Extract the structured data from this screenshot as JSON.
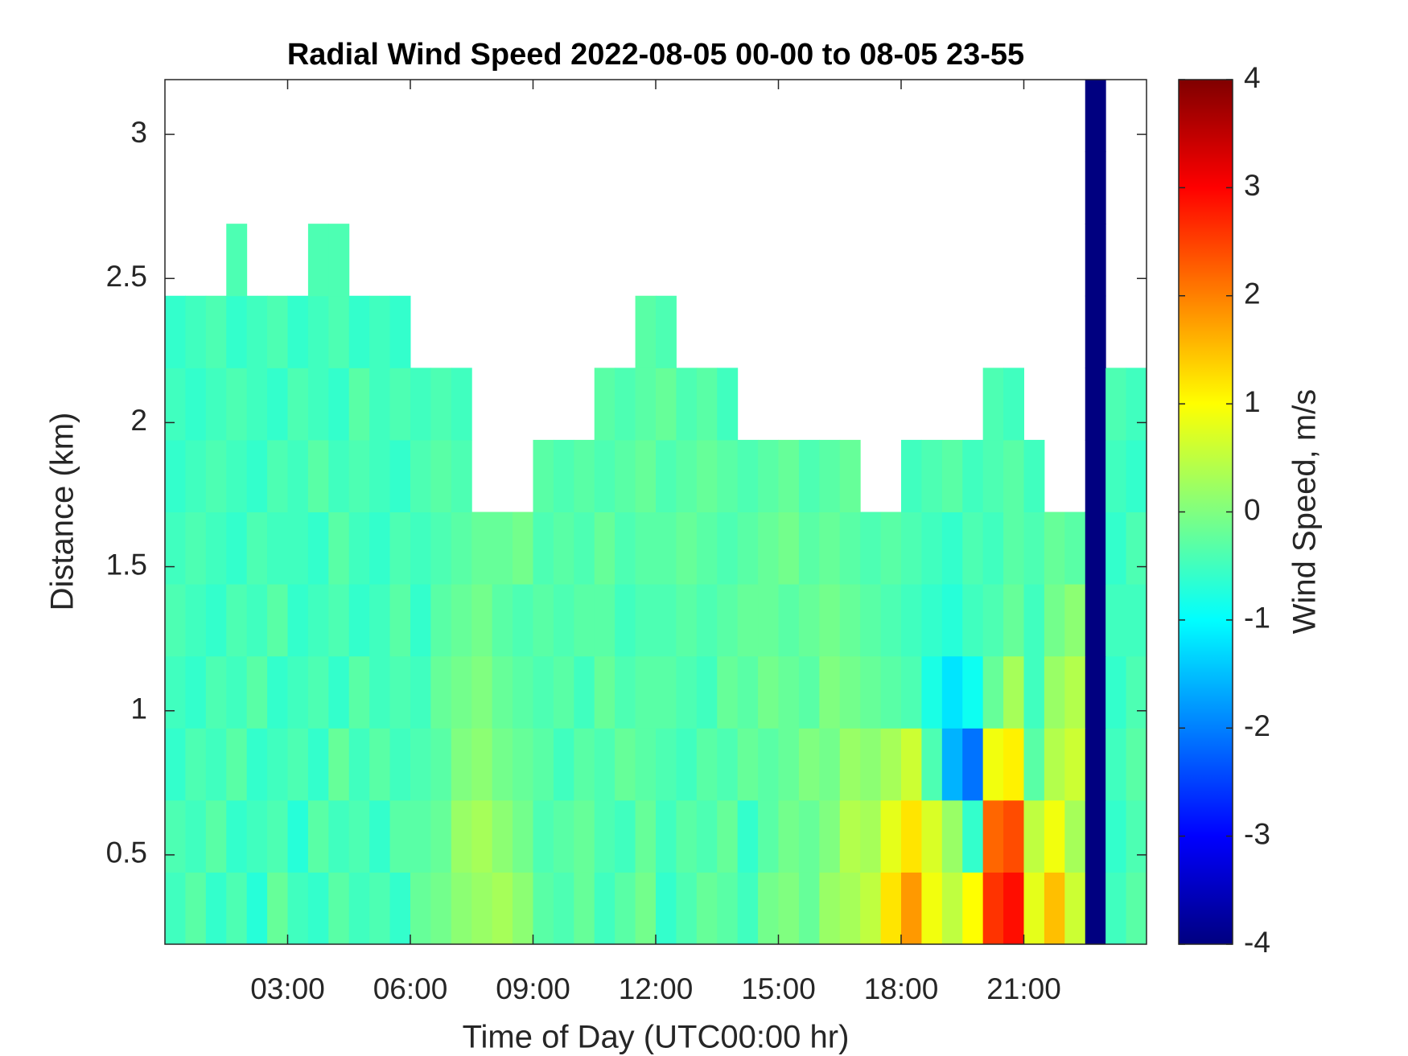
{
  "chart_data": {
    "type": "heatmap",
    "title": "Radial Wind Speed 2022-08-05 00-00 to 08-05 23-55",
    "xlabel": "Time of Day (UTC00:00 hr)",
    "ylabel": "Distance (km)",
    "x": [
      0.25,
      0.75,
      1.25,
      1.75,
      2.25,
      2.75,
      3.25,
      3.75,
      4.25,
      4.75,
      5.25,
      5.75,
      6.25,
      6.75,
      7.25,
      7.75,
      8.25,
      8.75,
      9.25,
      9.75,
      10.25,
      10.75,
      11.25,
      11.75,
      12.25,
      12.75,
      13.25,
      13.75,
      14.25,
      14.75,
      15.25,
      15.75,
      16.25,
      16.75,
      17.25,
      17.75,
      18.25,
      18.75,
      19.25,
      19.75,
      20.25,
      20.75,
      21.25,
      21.75,
      22.25,
      22.75,
      23.25,
      23.75
    ],
    "y": [
      0.315,
      0.565,
      0.815,
      1.065,
      1.315,
      1.565,
      1.815,
      2.065,
      2.315,
      2.565,
      2.815,
      3.065
    ],
    "z": [
      [
        -0.5,
        -0.3,
        -0.6,
        -0.4,
        -0.7,
        -0.2,
        -0.5,
        -0.6,
        -0.3,
        -0.5,
        -0.4,
        -0.6,
        -0.2,
        -0.1,
        0.1,
        0.2,
        0.3,
        0.1,
        -0.3,
        -0.4,
        -0.2,
        -0.5,
        -0.3,
        -0.1,
        -0.6,
        -0.4,
        -0.2,
        -0.3,
        -0.5,
        -0.1,
        0.0,
        -0.2,
        0.2,
        0.3,
        0.5,
        1.2,
        1.8,
        0.9,
        0.5,
        1.0,
        2.6,
        2.9,
        0.8,
        1.5,
        0.6,
        -4,
        -0.5,
        -0.3
      ],
      [
        -0.4,
        -0.5,
        -0.3,
        -0.6,
        -0.5,
        -0.4,
        -0.7,
        -0.3,
        -0.5,
        -0.4,
        -0.6,
        -0.3,
        -0.3,
        -0.2,
        0.2,
        0.3,
        0.1,
        -0.1,
        -0.4,
        -0.3,
        -0.2,
        -0.4,
        -0.5,
        -0.2,
        -0.5,
        -0.3,
        -0.4,
        -0.2,
        -0.6,
        -0.3,
        -0.1,
        -0.2,
        0.0,
        0.4,
        0.3,
        0.8,
        1.2,
        0.7,
        0.2,
        -0.6,
        2.2,
        2.4,
        0.5,
        0.9,
        0.3,
        -4,
        -0.6,
        -0.4
      ],
      [
        -0.6,
        -0.4,
        -0.5,
        -0.3,
        -0.6,
        -0.5,
        -0.4,
        -0.6,
        -0.2,
        -0.5,
        -0.3,
        -0.5,
        -0.4,
        -0.3,
        0.0,
        0.1,
        -0.1,
        -0.2,
        -0.3,
        -0.5,
        -0.3,
        -0.4,
        -0.2,
        -0.3,
        -0.4,
        -0.5,
        -0.3,
        -0.4,
        -0.2,
        -0.3,
        -0.2,
        0.0,
        -0.1,
        0.2,
        0.1,
        0.3,
        0.6,
        -0.4,
        -1.6,
        -2.1,
        0.9,
        1.1,
        -0.3,
        0.4,
        0.6,
        -4,
        -0.5,
        -0.3
      ],
      [
        -0.5,
        -0.6,
        -0.4,
        -0.5,
        -0.3,
        -0.6,
        -0.5,
        -0.4,
        -0.6,
        -0.3,
        -0.5,
        -0.4,
        -0.5,
        -0.2,
        -0.1,
        0.0,
        -0.2,
        -0.3,
        -0.4,
        -0.3,
        -0.5,
        -0.2,
        -0.4,
        -0.3,
        -0.3,
        -0.4,
        -0.5,
        -0.2,
        -0.3,
        -0.1,
        -0.2,
        -0.3,
        0.0,
        -0.1,
        -0.2,
        -0.3,
        -0.4,
        -0.8,
        -1.2,
        -0.9,
        -0.2,
        0.3,
        -0.5,
        0.2,
        0.4,
        -4,
        -0.6,
        -0.4
      ],
      [
        -0.4,
        -0.5,
        -0.6,
        -0.4,
        -0.5,
        -0.3,
        -0.6,
        -0.5,
        -0.4,
        -0.6,
        -0.5,
        -0.3,
        -0.6,
        -0.3,
        -0.2,
        -0.1,
        -0.3,
        -0.4,
        -0.3,
        -0.4,
        -0.3,
        -0.3,
        -0.5,
        -0.4,
        -0.4,
        -0.3,
        -0.4,
        -0.3,
        -0.2,
        -0.2,
        -0.3,
        -0.2,
        -0.1,
        -0.2,
        -0.3,
        -0.4,
        -0.5,
        -0.6,
        -0.7,
        -0.5,
        -0.4,
        -0.2,
        -0.5,
        -0.1,
        0.1,
        -4,
        -0.5,
        -0.5
      ],
      [
        -0.5,
        -0.4,
        -0.5,
        -0.6,
        -0.4,
        -0.5,
        -0.5,
        -0.6,
        -0.3,
        -0.5,
        -0.6,
        -0.4,
        -0.5,
        -0.4,
        -0.3,
        -0.2,
        -0.2,
        -0.1,
        -0.4,
        -0.3,
        -0.4,
        -0.2,
        -0.4,
        -0.3,
        -0.3,
        -0.2,
        -0.3,
        -0.4,
        -0.3,
        -0.2,
        -0.1,
        -0.3,
        -0.2,
        -0.3,
        -0.4,
        -0.3,
        -0.4,
        -0.5,
        -0.6,
        -0.4,
        -0.5,
        -0.3,
        -0.4,
        -0.2,
        -0.3,
        -4,
        -0.6,
        -0.4
      ],
      [
        -0.6,
        -0.5,
        -0.4,
        -0.5,
        -0.6,
        -0.4,
        -0.5,
        -0.3,
        -0.5,
        -0.4,
        -0.5,
        -0.6,
        -0.4,
        -0.3,
        -0.4,
        null,
        null,
        null,
        -0.3,
        -0.4,
        -0.3,
        -0.4,
        -0.3,
        -0.2,
        -0.4,
        -0.3,
        -0.2,
        -0.3,
        -0.4,
        -0.3,
        -0.2,
        -0.4,
        -0.3,
        -0.2,
        null,
        null,
        -0.5,
        -0.4,
        -0.3,
        -0.5,
        -0.4,
        -0.3,
        -0.5,
        null,
        null,
        -4,
        -0.5,
        -0.6
      ],
      [
        -0.5,
        -0.6,
        -0.5,
        -0.4,
        -0.5,
        -0.6,
        -0.4,
        -0.5,
        -0.6,
        -0.3,
        -0.5,
        -0.4,
        -0.5,
        -0.4,
        -0.5,
        null,
        null,
        null,
        null,
        null,
        null,
        -0.3,
        -0.4,
        -0.3,
        -0.2,
        -0.4,
        -0.3,
        -0.5,
        null,
        null,
        null,
        null,
        null,
        null,
        null,
        null,
        null,
        null,
        null,
        null,
        -0.4,
        -0.5,
        null,
        null,
        null,
        -4,
        -0.4,
        -0.5
      ],
      [
        -0.6,
        -0.5,
        -0.4,
        -0.6,
        -0.5,
        -0.4,
        -0.6,
        -0.5,
        -0.4,
        -0.6,
        -0.5,
        -0.6,
        null,
        null,
        null,
        null,
        null,
        null,
        null,
        null,
        null,
        null,
        null,
        -0.3,
        -0.4,
        null,
        null,
        null,
        null,
        null,
        null,
        null,
        null,
        null,
        null,
        null,
        null,
        null,
        null,
        null,
        null,
        null,
        null,
        null,
        null,
        -4,
        null,
        null
      ],
      [
        null,
        null,
        null,
        -0.4,
        null,
        null,
        null,
        -0.4,
        -0.4,
        null,
        null,
        null,
        null,
        null,
        null,
        null,
        null,
        null,
        null,
        null,
        null,
        null,
        null,
        null,
        null,
        null,
        null,
        null,
        null,
        null,
        null,
        null,
        null,
        null,
        null,
        null,
        null,
        null,
        null,
        null,
        null,
        null,
        null,
        null,
        null,
        -4,
        null,
        null
      ],
      [
        null,
        null,
        null,
        null,
        null,
        null,
        null,
        null,
        null,
        null,
        null,
        null,
        null,
        null,
        null,
        null,
        null,
        null,
        null,
        null,
        null,
        null,
        null,
        null,
        null,
        null,
        null,
        null,
        null,
        null,
        null,
        null,
        null,
        null,
        null,
        null,
        null,
        null,
        null,
        null,
        null,
        null,
        null,
        null,
        null,
        -4,
        null,
        null
      ],
      [
        null,
        null,
        null,
        null,
        null,
        null,
        null,
        null,
        null,
        null,
        null,
        null,
        null,
        null,
        null,
        null,
        null,
        null,
        null,
        null,
        null,
        null,
        null,
        null,
        null,
        null,
        null,
        null,
        null,
        null,
        null,
        null,
        null,
        null,
        null,
        null,
        null,
        null,
        null,
        null,
        null,
        null,
        null,
        null,
        null,
        -4,
        null,
        null
      ]
    ],
    "xlim": [
      0,
      24
    ],
    "ylim": [
      0.19,
      3.19
    ],
    "xticks": [
      {
        "value": 3,
        "label": "03:00"
      },
      {
        "value": 6,
        "label": "06:00"
      },
      {
        "value": 9,
        "label": "09:00"
      },
      {
        "value": 12,
        "label": "12:00"
      },
      {
        "value": 15,
        "label": "15:00"
      },
      {
        "value": 18,
        "label": "18:00"
      },
      {
        "value": 21,
        "label": "21:00"
      }
    ],
    "yticks": [
      0.5,
      1,
      1.5,
      2,
      2.5,
      3
    ],
    "colorbar": {
      "label": "Wind Speed, m/s",
      "colormap": "jet",
      "clim": [
        -4,
        4
      ],
      "ticks": [
        -4,
        -3,
        -2,
        -1,
        0,
        1,
        2,
        3,
        4
      ]
    }
  }
}
